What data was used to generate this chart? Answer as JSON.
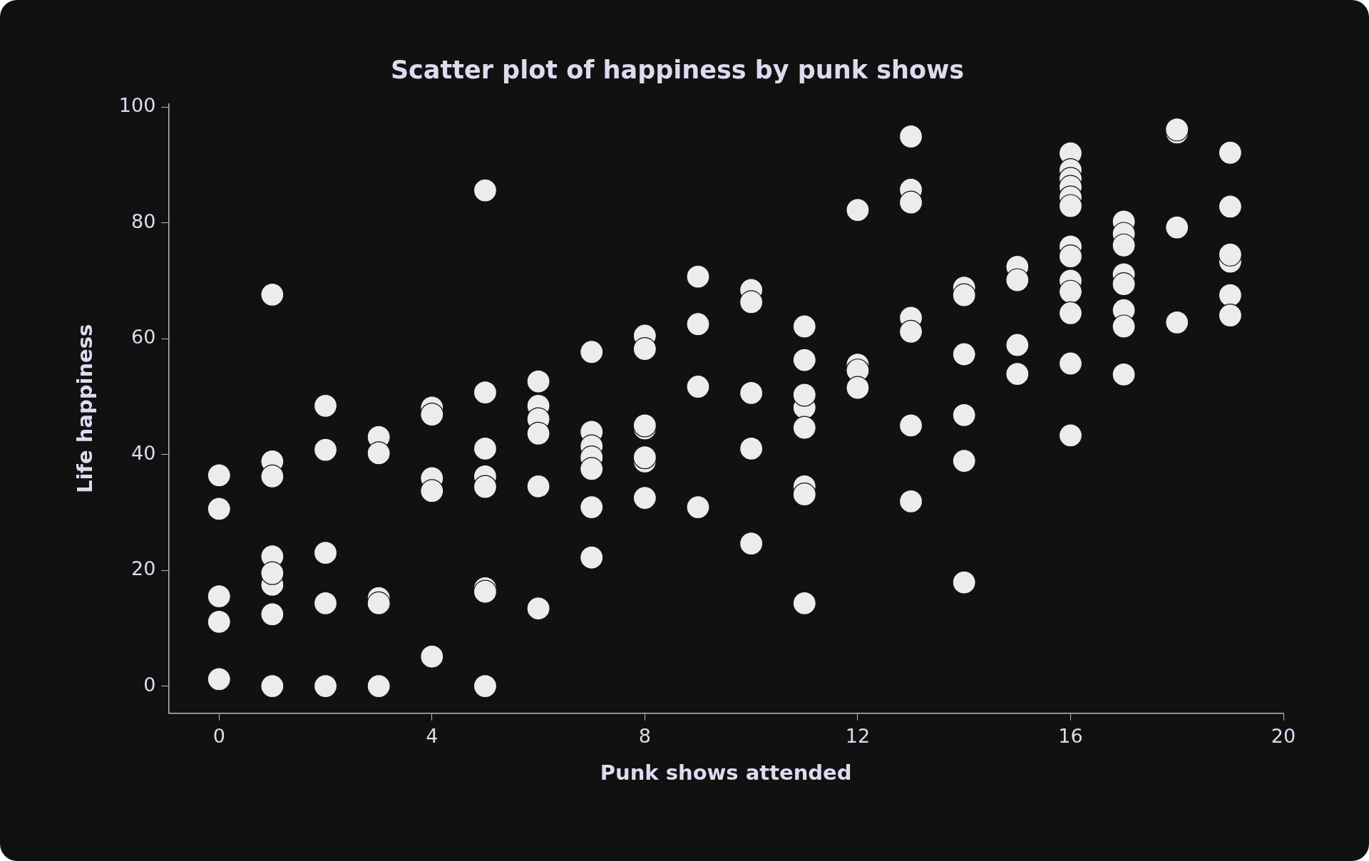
{
  "chart_data": {
    "type": "scatter",
    "title": "Scatter plot of happiness by punk shows",
    "xlabel": "Punk shows attended",
    "ylabel": "Life happiness",
    "xlim": [
      -0.95,
      20
    ],
    "xticks": [
      0,
      4,
      8,
      12,
      16,
      20
    ],
    "ylim": [
      -4.7,
      100.5
    ],
    "yticks": [
      0,
      20,
      40,
      60,
      80,
      100
    ],
    "grid": false,
    "legend": false,
    "marker": "circle",
    "series": [
      {
        "color": "#ececec",
        "x": [
          0,
          0,
          0,
          0,
          0,
          1,
          1,
          1,
          1,
          1,
          1,
          1,
          1,
          2,
          2,
          2,
          2,
          2,
          3,
          3,
          3,
          3,
          3,
          4,
          4,
          4,
          4,
          4,
          5,
          5,
          5,
          5,
          5,
          5,
          5,
          5,
          6,
          6,
          6,
          6,
          6,
          6,
          7,
          7,
          7,
          7,
          7,
          7,
          7,
          8,
          8,
          8,
          8,
          8,
          8,
          8,
          9,
          9,
          9,
          9,
          10,
          10,
          10,
          10,
          10,
          11,
          11,
          11,
          11,
          11,
          11,
          11,
          11,
          12,
          12,
          12,
          12,
          13,
          13,
          13,
          13,
          13,
          13,
          13,
          14,
          14,
          14,
          14,
          14,
          14,
          15,
          15,
          15,
          15,
          16,
          16,
          16,
          16,
          16,
          16,
          16,
          16,
          16,
          16,
          16,
          16,
          16,
          17,
          17,
          17,
          17,
          17,
          17,
          17,
          17,
          18,
          18,
          18,
          18,
          19,
          19,
          19,
          19,
          19,
          19
        ],
        "values": [
          36.4,
          30.6,
          15.5,
          11.1,
          1.2,
          67.6,
          38.8,
          36.2,
          22.4,
          17.5,
          19.5,
          12.4,
          0,
          48.4,
          40.8,
          23,
          14.3,
          0,
          43,
          40.2,
          15.2,
          14.3,
          0,
          48.1,
          46.9,
          35.9,
          33.7,
          5.1,
          85.6,
          50.7,
          41,
          36.2,
          34.4,
          16.9,
          16.3,
          0,
          52.6,
          48.4,
          46.1,
          43.6,
          34.5,
          13.4,
          57.7,
          43.9,
          41.4,
          39.5,
          37.5,
          30.9,
          22.2,
          60.5,
          58.2,
          44.5,
          45,
          38.8,
          39.5,
          32.5,
          70.7,
          62.5,
          51.7,
          30.9,
          68.4,
          66.3,
          50.6,
          41,
          24.6,
          62.1,
          56.3,
          48.1,
          50.3,
          44.6,
          34.5,
          33.1,
          14.3,
          82.2,
          55.5,
          54.5,
          51.5,
          94.9,
          85.7,
          83.5,
          63.6,
          61.2,
          45,
          31.9,
          68.8,
          67.5,
          57.3,
          46.8,
          38.9,
          17.9,
          72.4,
          70.1,
          58.9,
          53.9,
          92,
          89.1,
          87.6,
          86.2,
          84.4,
          82.9,
          75.9,
          74.2,
          70,
          68.1,
          64.4,
          55.7,
          43.3,
          80.2,
          78.1,
          76.1,
          71.1,
          69.4,
          64.9,
          62.1,
          53.8,
          95.6,
          96.1,
          79.2,
          62.8,
          92.1,
          82.8,
          73.3,
          74.5,
          67.5,
          64
        ]
      }
    ]
  }
}
